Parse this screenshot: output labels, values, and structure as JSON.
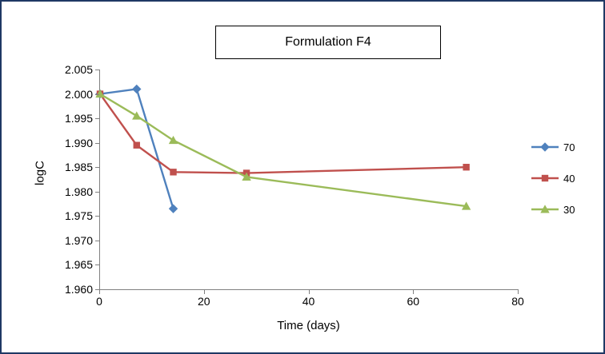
{
  "chart_data": {
    "type": "line",
    "title": "Formulation F4",
    "xlabel": "Time (days)",
    "ylabel": "logC",
    "xlim": [
      0,
      80
    ],
    "ylim": [
      1.96,
      2.005
    ],
    "x_ticks": [
      0,
      20,
      40,
      60,
      80
    ],
    "y_ticks": [
      1.96,
      1.965,
      1.97,
      1.975,
      1.98,
      1.985,
      1.99,
      1.995,
      2.0,
      2.005
    ],
    "grid": false,
    "legend_position": "right",
    "series": [
      {
        "name": "70",
        "color": "#4F81BD",
        "marker": "diamond",
        "x": [
          0,
          7,
          14
        ],
        "y": [
          2.0,
          2.001,
          1.9765
        ]
      },
      {
        "name": "40",
        "color": "#C0504D",
        "marker": "square",
        "x": [
          0,
          7,
          14,
          28,
          70
        ],
        "y": [
          2.0,
          1.9895,
          1.984,
          1.9838,
          1.985
        ]
      },
      {
        "name": "30",
        "color": "#9BBB59",
        "marker": "triangle",
        "x": [
          0,
          7,
          14,
          28,
          70
        ],
        "y": [
          2.0,
          1.9955,
          1.9905,
          1.983,
          1.977
        ]
      }
    ]
  }
}
